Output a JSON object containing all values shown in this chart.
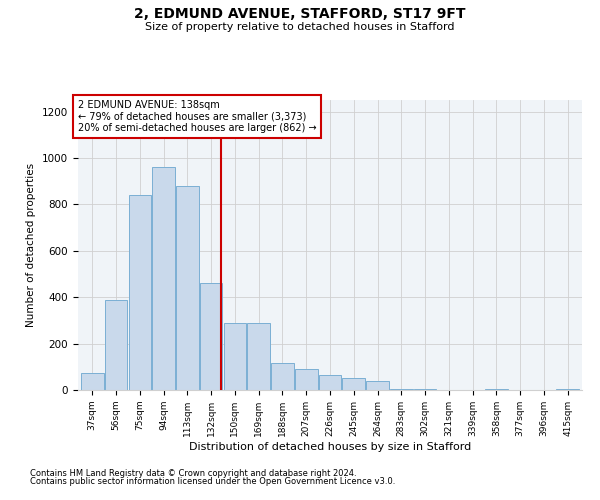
{
  "title1": "2, EDMUND AVENUE, STAFFORD, ST17 9FT",
  "title2": "Size of property relative to detached houses in Stafford",
  "xlabel": "Distribution of detached houses by size in Stafford",
  "ylabel": "Number of detached properties",
  "footnote1": "Contains HM Land Registry data © Crown copyright and database right 2024.",
  "footnote2": "Contains public sector information licensed under the Open Government Licence v3.0.",
  "annotation_title": "2 EDMUND AVENUE: 138sqm",
  "annotation_line1": "← 79% of detached houses are smaller (3,373)",
  "annotation_line2": "20% of semi-detached houses are larger (862) →",
  "bar_color": "#c9d9eb",
  "bar_edge_color": "#7aafd4",
  "ref_line_color": "#cc0000",
  "categories": [
    "37sqm",
    "56sqm",
    "75sqm",
    "94sqm",
    "113sqm",
    "132sqm",
    "150sqm",
    "169sqm",
    "188sqm",
    "207sqm",
    "226sqm",
    "245sqm",
    "264sqm",
    "283sqm",
    "302sqm",
    "321sqm",
    "339sqm",
    "358sqm",
    "377sqm",
    "396sqm",
    "415sqm"
  ],
  "values": [
    75,
    390,
    840,
    960,
    880,
    460,
    290,
    290,
    115,
    90,
    65,
    50,
    40,
    5,
    5,
    0,
    0,
    5,
    0,
    0,
    5
  ],
  "ylim": [
    0,
    1250
  ],
  "yticks": [
    0,
    200,
    400,
    600,
    800,
    1000,
    1200
  ],
  "ref_line_x": 5.42,
  "grid_color": "#d0d0d0",
  "background_color": "#f0f4f8"
}
